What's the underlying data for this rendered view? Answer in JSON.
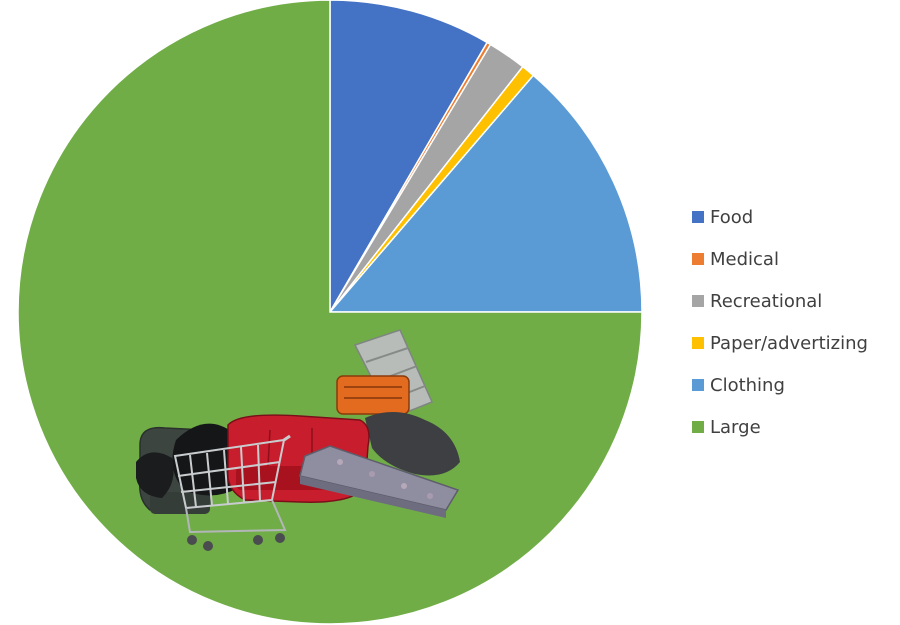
{
  "chart_data": {
    "type": "pie",
    "title": "",
    "legend_position": "right",
    "slices": [
      {
        "label": "Food",
        "value": 8.4,
        "color": "#4472c4"
      },
      {
        "label": "Medical",
        "value": 0.2,
        "color": "#ed7d31"
      },
      {
        "label": "Recreational",
        "value": 2.0,
        "color": "#a5a5a5"
      },
      {
        "label": "Paper/advertizing",
        "value": 0.7,
        "color": "#ffc000"
      },
      {
        "label": "Clothing",
        "value": 13.7,
        "color": "#5b9bd5"
      },
      {
        "label": "Large",
        "value": 75.0,
        "color": "#70ad47"
      }
    ]
  }
}
